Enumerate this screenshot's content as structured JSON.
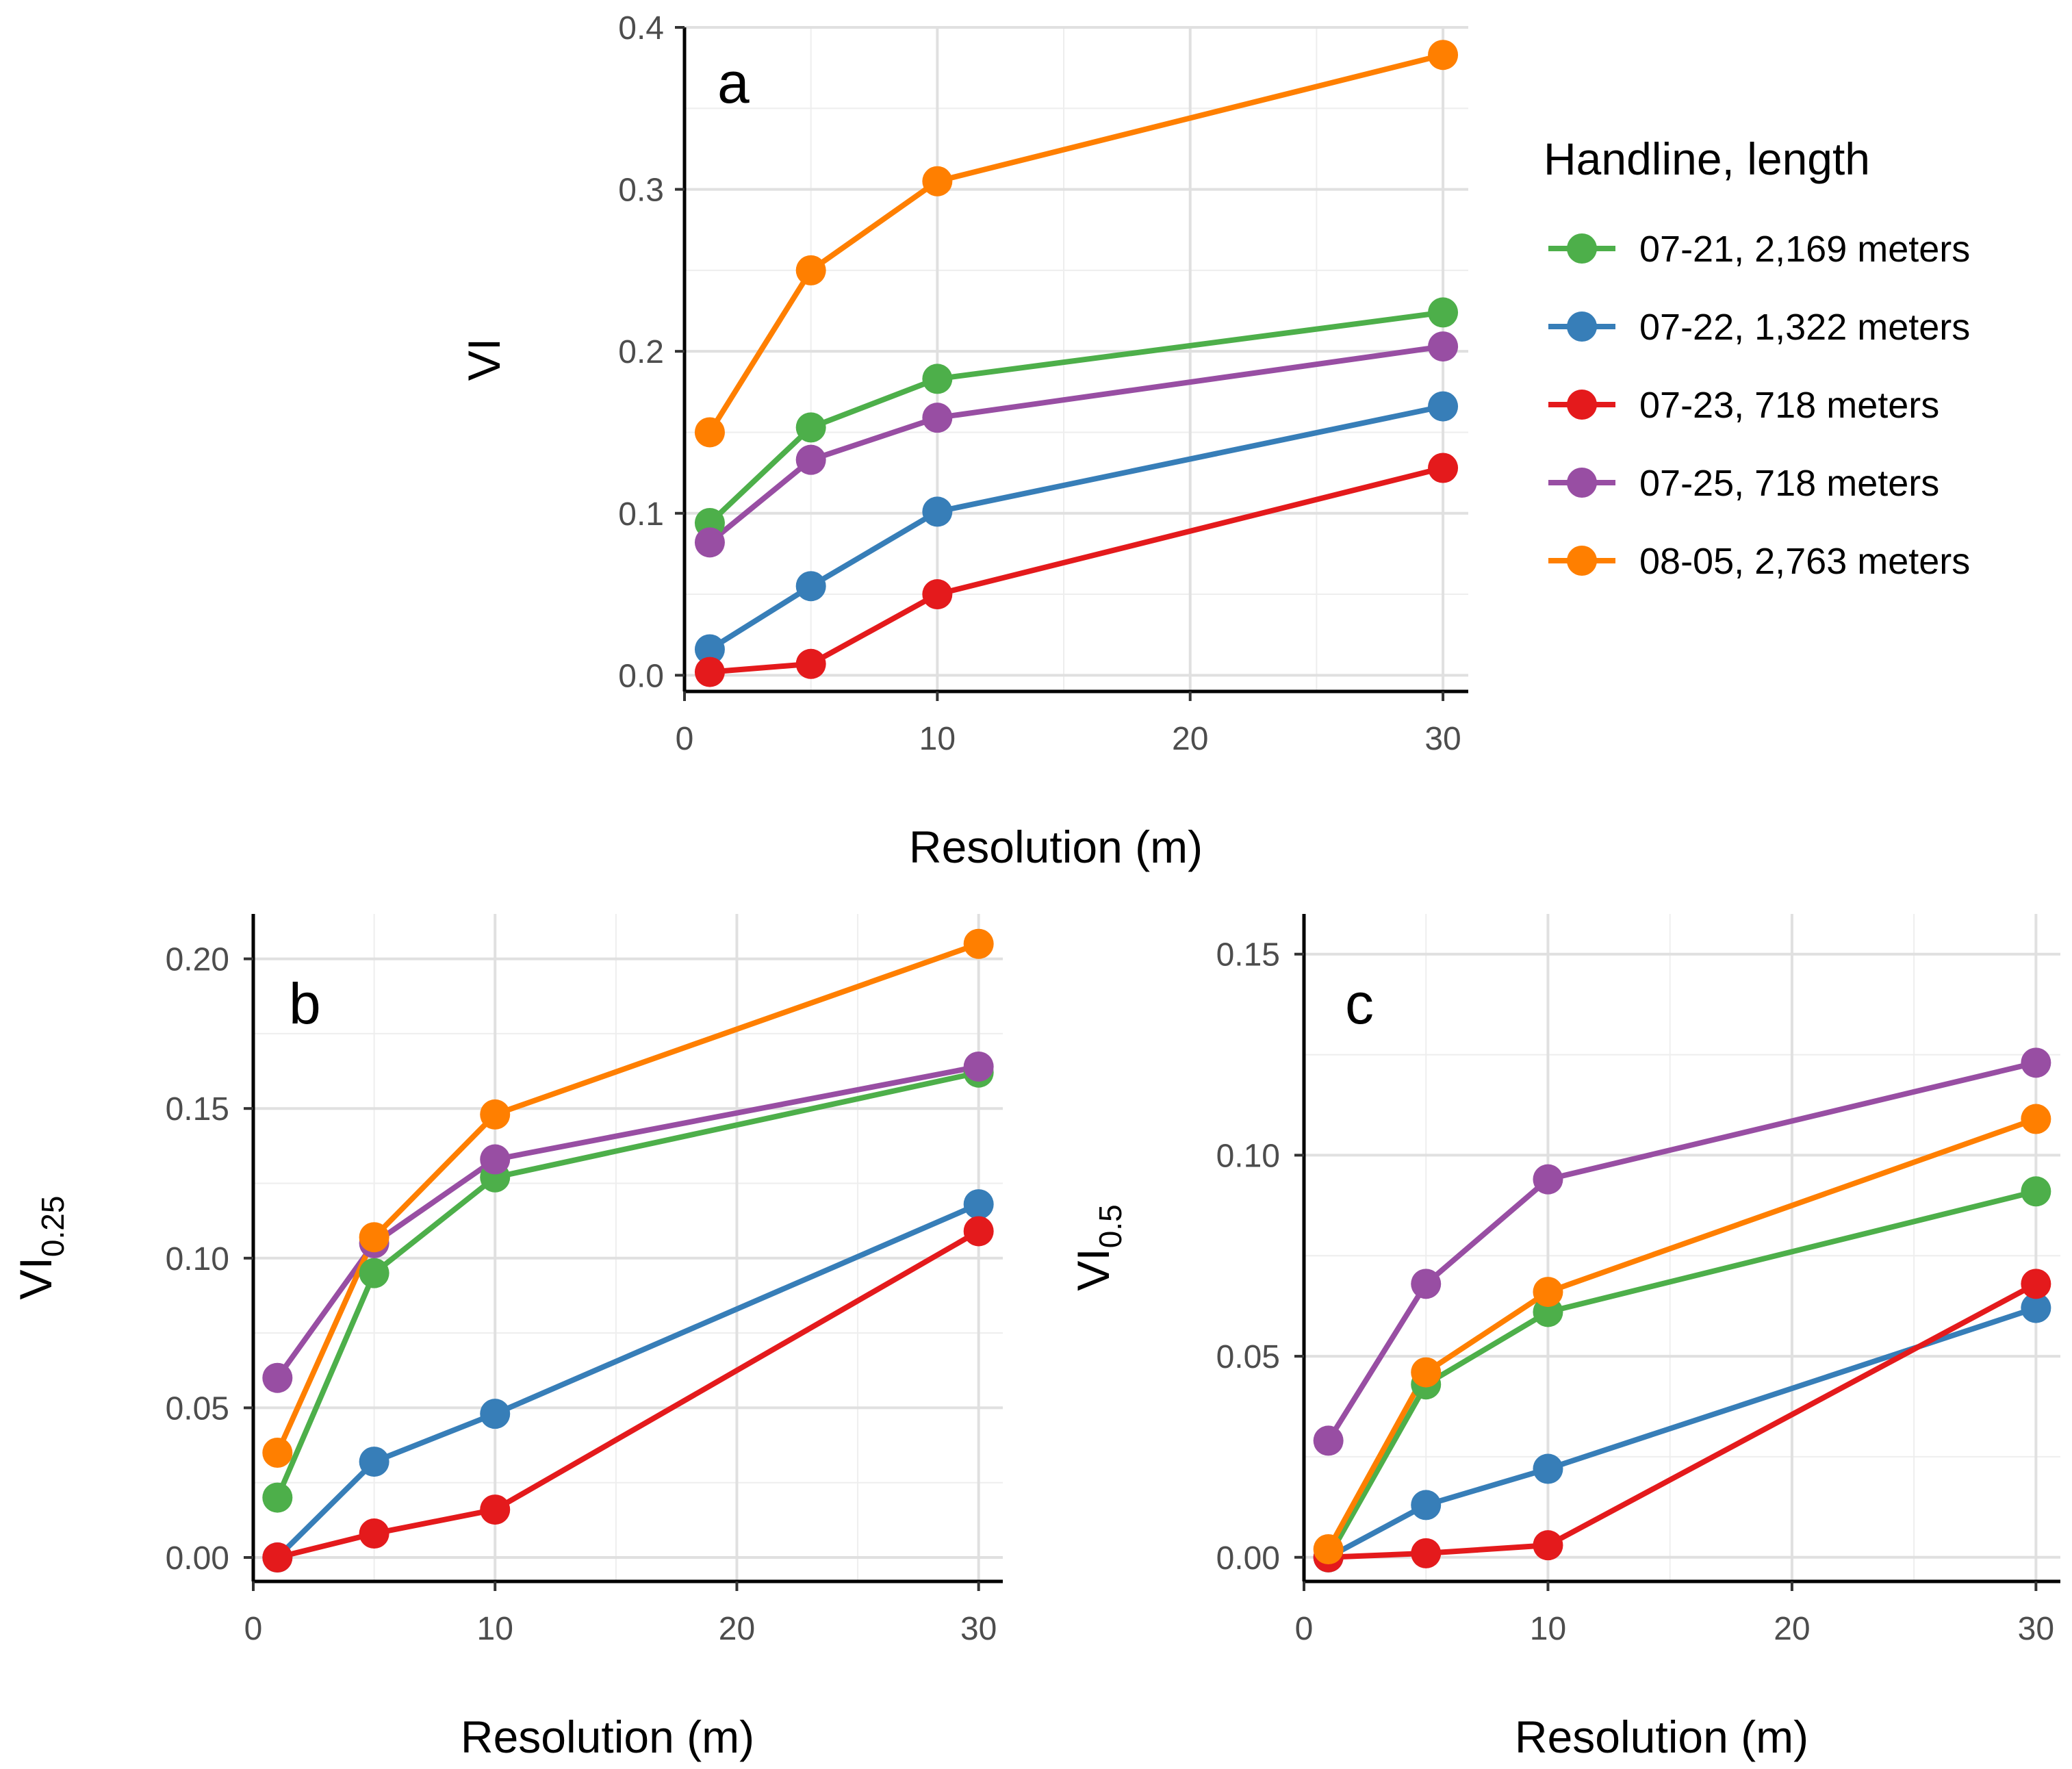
{
  "chart_data": [
    {
      "type": "line",
      "panel": "a",
      "title": "",
      "xlabel": "Resolution (m)",
      "ylabel": "VI",
      "ylabel_sub": "",
      "xlim": [
        0,
        31
      ],
      "ylim": [
        -0.01,
        0.4
      ],
      "xticks": [
        0,
        10,
        20,
        30
      ],
      "yticks": [
        0.0,
        0.1,
        0.2,
        0.3,
        0.4
      ],
      "ytick_labels": [
        "0.0",
        "0.1",
        "0.2",
        "0.3",
        "0.4"
      ],
      "x": [
        1,
        5,
        10,
        30
      ],
      "series": [
        {
          "name": "07-21, 2,169 meters",
          "color": "#4daf4a",
          "values": [
            0.094,
            0.153,
            0.183,
            0.224
          ]
        },
        {
          "name": "07-22, 1,322 meters",
          "color": "#377eb8",
          "values": [
            0.016,
            0.055,
            0.101,
            0.166
          ]
        },
        {
          "name": "07-23, 718 meters",
          "color": "#e41a1c",
          "values": [
            0.002,
            0.007,
            0.05,
            0.128
          ]
        },
        {
          "name": "07-25, 718 meters",
          "color": "#984ea3",
          "values": [
            0.082,
            0.133,
            0.159,
            0.203
          ]
        },
        {
          "name": "08-05, 2,763 meters",
          "color": "#ff7f00",
          "values": [
            0.15,
            0.25,
            0.305,
            0.383
          ]
        }
      ],
      "legend": {
        "title": "Handline, length",
        "position": "right"
      }
    },
    {
      "type": "line",
      "panel": "b",
      "title": "",
      "xlabel": "Resolution (m)",
      "ylabel": "VI",
      "ylabel_sub": "0.25",
      "xlim": [
        0,
        31
      ],
      "ylim": [
        -0.008,
        0.215
      ],
      "xticks": [
        0,
        10,
        20,
        30
      ],
      "yticks": [
        0.0,
        0.05,
        0.1,
        0.15,
        0.2
      ],
      "ytick_labels": [
        "0.00",
        "0.05",
        "0.10",
        "0.15",
        "0.20"
      ],
      "x": [
        1,
        5,
        10,
        30
      ],
      "series": [
        {
          "name": "07-21, 2,169 meters",
          "color": "#4daf4a",
          "values": [
            0.02,
            0.095,
            0.127,
            0.162
          ]
        },
        {
          "name": "07-22, 1,322 meters",
          "color": "#377eb8",
          "values": [
            0.0,
            0.032,
            0.048,
            0.118
          ]
        },
        {
          "name": "07-23, 718 meters",
          "color": "#e41a1c",
          "values": [
            0.0,
            0.008,
            0.016,
            0.109
          ]
        },
        {
          "name": "07-25, 718 meters",
          "color": "#984ea3",
          "values": [
            0.06,
            0.105,
            0.133,
            0.164
          ]
        },
        {
          "name": "08-05, 2,763 meters",
          "color": "#ff7f00",
          "values": [
            0.035,
            0.107,
            0.148,
            0.205
          ]
        }
      ]
    },
    {
      "type": "line",
      "panel": "c",
      "title": "",
      "xlabel": "Resolution (m)",
      "ylabel": "VI",
      "ylabel_sub": "0.5",
      "xlim": [
        0,
        31
      ],
      "ylim": [
        -0.006,
        0.16
      ],
      "xticks": [
        0,
        10,
        20,
        30
      ],
      "yticks": [
        0.0,
        0.05,
        0.1,
        0.15
      ],
      "ytick_labels": [
        "0.00",
        "0.05",
        "0.10",
        "0.15"
      ],
      "x": [
        1,
        5,
        10,
        30
      ],
      "series": [
        {
          "name": "07-21, 2,169 meters",
          "color": "#4daf4a",
          "values": [
            0.0,
            0.043,
            0.061,
            0.091
          ]
        },
        {
          "name": "07-22, 1,322 meters",
          "color": "#377eb8",
          "values": [
            0.0,
            0.013,
            0.022,
            0.062
          ]
        },
        {
          "name": "07-23, 718 meters",
          "color": "#e41a1c",
          "values": [
            0.0,
            0.001,
            0.003,
            0.068
          ]
        },
        {
          "name": "07-25, 718 meters",
          "color": "#984ea3",
          "values": [
            0.029,
            0.068,
            0.094,
            0.123
          ]
        },
        {
          "name": "08-05, 2,763 meters",
          "color": "#ff7f00",
          "values": [
            0.002,
            0.046,
            0.066,
            0.109
          ]
        }
      ]
    }
  ]
}
